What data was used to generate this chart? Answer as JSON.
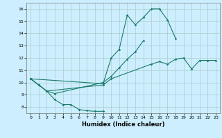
{
  "xlabel": "Humidex (Indice chaleur)",
  "background_color": "#cceeff",
  "grid_color": "#aacccc",
  "line_color": "#1a7a6a",
  "xlim": [
    -0.5,
    23.5
  ],
  "ylim": [
    7.5,
    16.5
  ],
  "xticks": [
    0,
    1,
    2,
    3,
    4,
    5,
    6,
    7,
    8,
    9,
    10,
    11,
    12,
    13,
    14,
    15,
    16,
    17,
    18,
    19,
    20,
    21,
    22,
    23
  ],
  "yticks": [
    8,
    9,
    10,
    11,
    12,
    13,
    14,
    15,
    16
  ],
  "series": [
    {
      "x": [
        0,
        1,
        2,
        3,
        4,
        5,
        6,
        7,
        8,
        9
      ],
      "y": [
        10.3,
        9.8,
        9.3,
        8.6,
        8.2,
        8.2,
        7.8,
        7.7,
        7.65,
        7.65
      ]
    },
    {
      "x": [
        0,
        9,
        10,
        11,
        12,
        13,
        14,
        15,
        16,
        17,
        18
      ],
      "y": [
        10.3,
        9.9,
        12.0,
        12.7,
        15.5,
        14.7,
        15.3,
        16.0,
        16.0,
        15.1,
        13.6
      ]
    },
    {
      "x": [
        0,
        1,
        2,
        3,
        9,
        10,
        11,
        12,
        13,
        14
      ],
      "y": [
        10.3,
        9.8,
        9.3,
        9.1,
        10.0,
        10.5,
        11.2,
        11.9,
        12.5,
        13.4
      ]
    },
    {
      "x": [
        0,
        1,
        2,
        9,
        10,
        15,
        16,
        17,
        18,
        19,
        20,
        21,
        22,
        23
      ],
      "y": [
        10.3,
        9.8,
        9.3,
        9.8,
        10.3,
        11.5,
        11.7,
        11.5,
        11.9,
        12.0,
        11.1,
        11.8,
        11.8,
        11.8
      ]
    }
  ]
}
